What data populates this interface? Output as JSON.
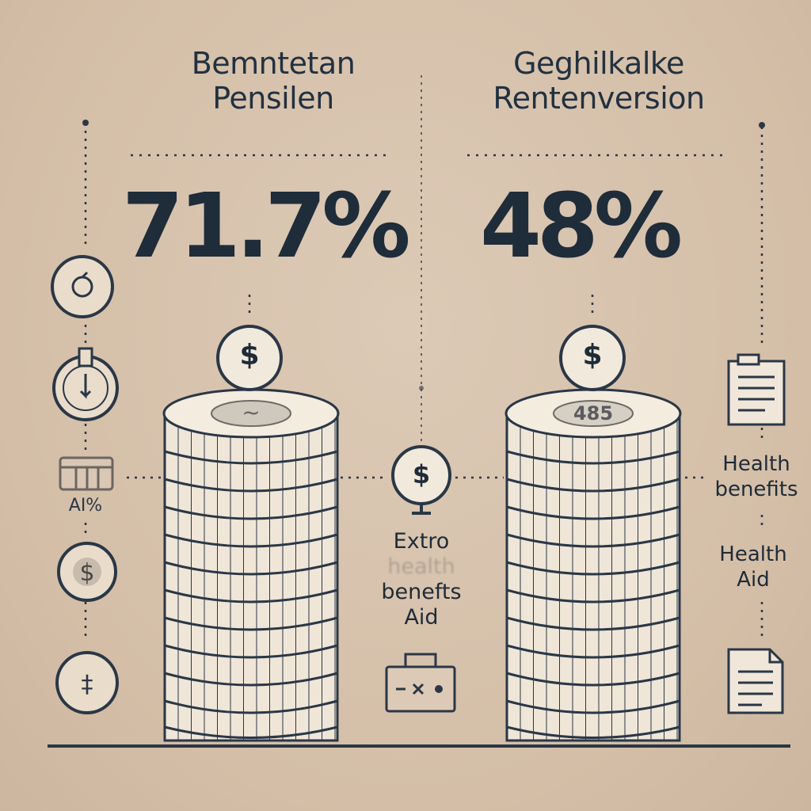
{
  "left": {
    "title_line1": "Bemntetan",
    "title_line2": "Pensilen",
    "percent": "71.7%",
    "top_coin_symbol": "$",
    "side_label": "AI%"
  },
  "middle": {
    "coin_symbol": "$",
    "label_line1": "Extro",
    "label_line2": "health",
    "label_line3": "benefts",
    "label_line4": "Aid"
  },
  "right": {
    "title_line1": "Geghilkalke",
    "title_line2": "Rentenversion",
    "percent": "48%",
    "top_coin_symbol": "$",
    "stack_top_label": "485",
    "label_a_line1": "Health",
    "label_a_line2": "benefits",
    "label_b_line1": "Health",
    "label_b_line2": "Aid"
  },
  "colors": {
    "background": "#d8c4ae",
    "ink": "#1e2b38",
    "coin_face": "#f1e9dc"
  },
  "icons": {
    "left_column": [
      "clock-coin-icon",
      "power-coin-icon",
      "bank-building-icon",
      "dollar-coin-icon",
      "currency-coin-icon"
    ],
    "middle": [
      "dollar-badge-icon",
      "medical-briefcase-icon"
    ],
    "right_column": [
      "document-list-icon",
      "document-list-icon"
    ]
  }
}
